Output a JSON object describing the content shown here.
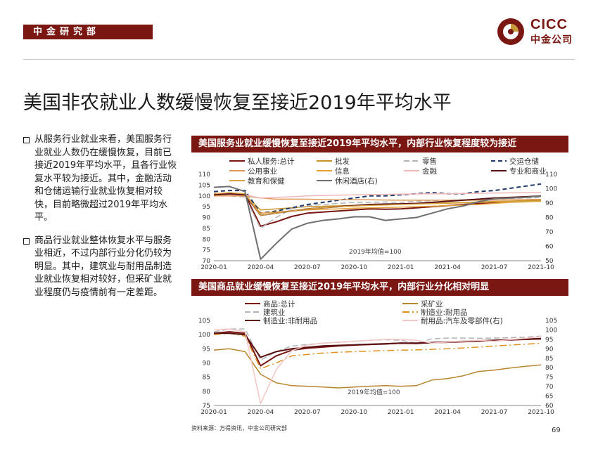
{
  "header": {
    "section_tag": "中金研究部",
    "logo_text_en": "CICC",
    "logo_text_cn": "中金公司"
  },
  "title": "美国非农就业人数缓慢恢复至接近2019年平均水平",
  "bullets": [
    "从服务行业就业来看，美国服务行业就业人数仍在缓慢恢复，目前已接近2019年平均水平，且各行业恢复水平较为接近。其中，金融活动和仓储运输行业就业恢复相对较快，目前略微超过2019年平均水平。",
    "商品行业就业整体恢复水平与服务业相近，不过内部行业分化仍较为明显。其中，建筑业与耐用品制造业就业恢复相对较好，但采矿业就业程度仍与疫情前有一定差距。"
  ],
  "footer": {
    "source": "资料来源：万得资讯，中金公司研究部",
    "page": "69"
  },
  "chart_data": [
    {
      "type": "line",
      "title": "美国服务业就业缓慢恢复至接近2019年平均水平，内部行业恢复程度较为接近",
      "annotation": "2019年均值=100",
      "x": [
        "2020-01",
        "2020-02",
        "2020-03",
        "2020-04",
        "2020-05",
        "2020-06",
        "2020-07",
        "2020-08",
        "2020-09",
        "2020-10",
        "2020-11",
        "2020-12",
        "2021-01",
        "2021-02",
        "2021-03",
        "2021-04",
        "2021-05",
        "2021-06",
        "2021-07",
        "2021-08",
        "2021-09",
        "2021-10"
      ],
      "xticks": [
        "2020-01",
        "2020-04",
        "2020-07",
        "2020-10",
        "2021-01",
        "2021-04",
        "2021-07",
        "2021-10"
      ],
      "ylim_left": [
        70,
        110
      ],
      "yticks_left": [
        "110",
        "105",
        "100",
        "95",
        "90",
        "85",
        "80",
        "75",
        "70"
      ],
      "ylim_right": [
        50,
        110
      ],
      "yticks_right": [
        "110",
        "100",
        "90",
        "80",
        "70",
        "60",
        "50"
      ],
      "series": [
        {
          "name": "私人服务:总计",
          "color": "#7a1712",
          "dash": "",
          "width": 2,
          "axis": "left",
          "values": [
            101,
            101,
            100.5,
            86,
            88,
            90.5,
            92,
            92.5,
            93,
            93.5,
            94,
            93.8,
            94,
            94.5,
            95,
            95.5,
            96,
            96.5,
            97,
            97.3,
            97.6,
            98
          ]
        },
        {
          "name": "批发",
          "color": "#c8952a",
          "dash": "",
          "width": 1.5,
          "axis": "left",
          "values": [
            100.5,
            100.5,
            100.3,
            93.5,
            94,
            94.5,
            95,
            95.2,
            95.4,
            95.6,
            95.8,
            96,
            96.2,
            96.4,
            96.6,
            96.8,
            97,
            97.2,
            97.4,
            97.6,
            97.8,
            98
          ]
        },
        {
          "name": "零售",
          "color": "#b4b4b4",
          "dash": "8,4",
          "width": 1.5,
          "axis": "left",
          "values": [
            100,
            100,
            99.5,
            85,
            90,
            94,
            95.5,
            96,
            96.5,
            97,
            97,
            97.2,
            97,
            97.5,
            97.8,
            98,
            98.2,
            98.4,
            98.6,
            98.8,
            99,
            99.2
          ]
        },
        {
          "name": "交运仓储",
          "color": "#1f3a6b",
          "dash": "6,4",
          "width": 2,
          "axis": "left",
          "values": [
            102,
            102.5,
            102.5,
            92,
            93,
            94.5,
            96,
            97,
            98,
            99,
            100,
            100,
            100.5,
            101,
            101.5,
            101,
            101,
            102,
            102.5,
            103.5,
            104.5,
            105.5
          ]
        },
        {
          "name": "公用事业",
          "color": "#e09a5a",
          "dash": "",
          "width": 1.5,
          "axis": "left",
          "values": [
            100,
            100,
            100,
            99,
            98.5,
            98.5,
            98.5,
            98.3,
            98.2,
            98.2,
            98.2,
            98.1,
            98,
            98,
            98,
            98,
            98,
            98,
            98,
            98.2,
            98.3,
            98.4
          ]
        },
        {
          "name": "信息",
          "color": "#e6a23c",
          "dash": "",
          "width": 1.5,
          "axis": "left",
          "values": [
            100.5,
            100.5,
            100.3,
            92,
            92.5,
            93,
            93.5,
            93.8,
            94,
            94.3,
            94.5,
            94.6,
            94.8,
            95,
            95.2,
            95.5,
            95.8,
            96,
            96.5,
            97,
            97.2,
            97.5
          ]
        },
        {
          "name": "金融",
          "color": "#f2b8b8",
          "dash": "",
          "width": 1.5,
          "axis": "left",
          "values": [
            100.5,
            100.5,
            100.5,
            99,
            99.3,
            99.6,
            100,
            100.2,
            100.3,
            100.5,
            100.6,
            100.7,
            100.8,
            100.9,
            101,
            101,
            101.1,
            101.2,
            101.3,
            101.4,
            101.5,
            101.6
          ]
        },
        {
          "name": "专业和商业",
          "color": "#5a1010",
          "dash": "",
          "width": 2,
          "axis": "left",
          "values": [
            100.5,
            101,
            100.5,
            91,
            92,
            93,
            94,
            94.5,
            95,
            95.5,
            96,
            96.2,
            96.3,
            96.5,
            97,
            97.5,
            98,
            98.5,
            99,
            99.3,
            99.6,
            100
          ]
        },
        {
          "name": "教育和保健",
          "color": "#d9a441",
          "dash": "",
          "width": 1.5,
          "axis": "left",
          "values": [
            101,
            101.5,
            101,
            91,
            92,
            93,
            94,
            94.5,
            95,
            95.3,
            95.6,
            95.8,
            96,
            96.2,
            96.4,
            96.6,
            96.8,
            97,
            97.2,
            97.3,
            97.4,
            97.5
          ]
        },
        {
          "name": "休闲酒店(右)",
          "color": "#707070",
          "dash": "",
          "width": 2,
          "axis": "right",
          "values": [
            101,
            101.5,
            98,
            51,
            62,
            72,
            76,
            78,
            79,
            80.5,
            80.5,
            78,
            79,
            80,
            83,
            86,
            88,
            91,
            93,
            93.5,
            94,
            95
          ]
        }
      ]
    },
    {
      "type": "line",
      "title": "美国商品就业缓慢恢复至接近2019年平均水平，内部行业分化相对明显",
      "annotation": "2019年均值=100",
      "x": [
        "2020-01",
        "2020-02",
        "2020-03",
        "2020-04",
        "2020-05",
        "2020-06",
        "2020-07",
        "2020-08",
        "2020-09",
        "2020-10",
        "2020-11",
        "2020-12",
        "2021-01",
        "2021-02",
        "2021-03",
        "2021-04",
        "2021-05",
        "2021-06",
        "2021-07",
        "2021-08",
        "2021-09",
        "2021-10"
      ],
      "xticks": [
        "2020-01",
        "2020-04",
        "2020-07",
        "2020-10",
        "2021-01",
        "2021-04",
        "2021-07",
        "2021-10"
      ],
      "ylim_left": [
        75,
        105
      ],
      "yticks_left": [
        "105",
        "100",
        "95",
        "90",
        "85",
        "80",
        "75"
      ],
      "ylim_right": [
        60,
        105
      ],
      "yticks_right": [
        "105",
        "100",
        "95",
        "90",
        "85",
        "80",
        "75",
        "70",
        "65",
        "60"
      ],
      "series": [
        {
          "name": "商品:总计",
          "color": "#7a1712",
          "dash": "",
          "width": 2,
          "axis": "left",
          "values": [
            100.5,
            101,
            100.5,
            89,
            92.5,
            94.5,
            95.2,
            95.6,
            96,
            96.3,
            96.5,
            96.7,
            97,
            96.9,
            97.2,
            97.3,
            97.5,
            97.7,
            97.9,
            98.1,
            98.3,
            98.5
          ]
        },
        {
          "name": "采矿业",
          "color": "#b8862b",
          "dash": "",
          "width": 1.5,
          "axis": "left",
          "values": [
            94.5,
            95,
            94,
            86,
            83,
            82,
            81.8,
            81.5,
            81.2,
            81.5,
            81.8,
            82,
            81.8,
            82,
            84,
            84.5,
            85.5,
            87,
            87.5,
            88.2,
            88.8,
            89.3
          ]
        },
        {
          "name": "建筑业",
          "color": "#b4b4b4",
          "dash": "8,4",
          "width": 1.5,
          "axis": "left",
          "values": [
            101,
            102,
            102,
            91,
            94,
            96,
            96.5,
            97,
            97.3,
            97.6,
            98,
            98.2,
            98,
            97,
            98.5,
            98.8,
            98.8,
            98.7,
            98.8,
            98.9,
            99.1,
            99.5
          ]
        },
        {
          "name": "制造业:耐用品",
          "color": "#e0901e",
          "dash": "10,4,2,4",
          "width": 1.5,
          "axis": "left",
          "values": [
            100,
            100.5,
            99.5,
            88,
            90,
            92.5,
            93,
            93.5,
            93.8,
            94,
            94.2,
            94.4,
            94.5,
            94.6,
            94.8,
            95,
            95.3,
            95.6,
            96,
            96.3,
            96.6,
            97
          ]
        },
        {
          "name": "制造业:非耐用品",
          "color": "#5a1010",
          "dash": "",
          "width": 2,
          "axis": "left",
          "values": [
            100.5,
            100.5,
            100,
            92,
            94,
            95,
            95.5,
            96,
            96.2,
            96.4,
            96.6,
            96.8,
            97,
            97,
            97.2,
            97.4,
            97.6,
            97.8,
            98,
            98.2,
            98.4,
            98.6
          ]
        },
        {
          "name": "耐用品:汽车及零部件(右)",
          "color": "#f4c6c6",
          "dash": "",
          "width": 1.5,
          "axis": "right",
          "values": [
            100,
            100.5,
            99,
            61,
            79,
            89,
            92,
            93,
            93.5,
            94,
            94.5,
            95,
            95,
            94.5,
            93,
            93.5,
            94,
            94.5,
            94,
            94.8,
            95.5,
            96.5
          ]
        }
      ]
    }
  ]
}
